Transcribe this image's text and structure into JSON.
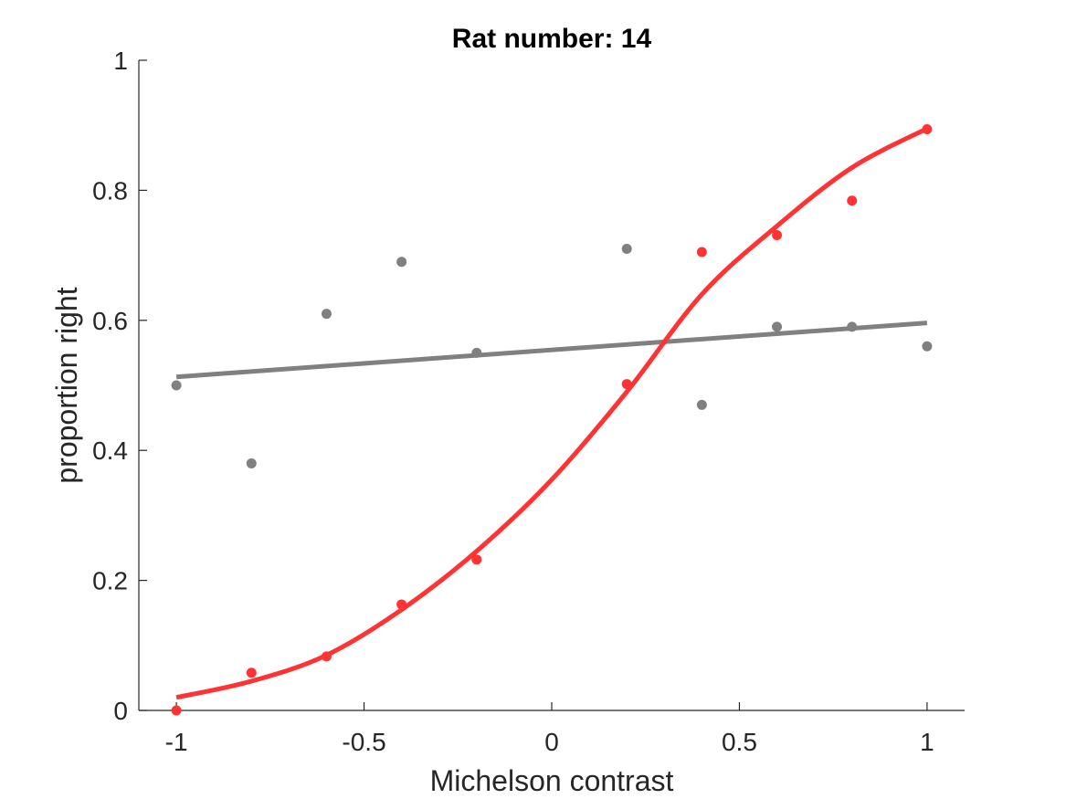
{
  "chart_data": {
    "type": "scatter",
    "title": "Rat number: 14",
    "xlabel": "Michelson contrast",
    "ylabel": "proportion right",
    "xlim": [
      -1.1,
      1.1
    ],
    "ylim": [
      0,
      1
    ],
    "xticks": [
      -1,
      -0.5,
      0,
      0.5,
      1
    ],
    "xtick_labels": [
      "-1",
      "-0.5",
      "0",
      "0.5",
      "1"
    ],
    "yticks": [
      0,
      0.2,
      0.4,
      0.6,
      0.8,
      1
    ],
    "ytick_labels": [
      "0",
      "0.2",
      "0.4",
      "0.6",
      "0.8",
      "1"
    ],
    "grid": false,
    "legend": "none",
    "series": [
      {
        "color": "#808080",
        "points": [
          {
            "x": -1.0,
            "y": 0.5
          },
          {
            "x": -0.8,
            "y": 0.38
          },
          {
            "x": -0.6,
            "y": 0.61
          },
          {
            "x": -0.4,
            "y": 0.69
          },
          {
            "x": -0.2,
            "y": 0.55
          },
          {
            "x": 0.2,
            "y": 0.71
          },
          {
            "x": 0.4,
            "y": 0.47
          },
          {
            "x": 0.6,
            "y": 0.59
          },
          {
            "x": 0.8,
            "y": 0.59
          },
          {
            "x": 1.0,
            "y": 0.56
          }
        ],
        "fit": {
          "x": [
            -1.0,
            1.0
          ],
          "y": [
            0.513,
            0.596
          ]
        }
      },
      {
        "color": "#ff3333",
        "points": [
          {
            "x": -1.0,
            "y": 0.0
          },
          {
            "x": -0.8,
            "y": 0.058
          },
          {
            "x": -0.6,
            "y": 0.083
          },
          {
            "x": -0.4,
            "y": 0.163
          },
          {
            "x": -0.2,
            "y": 0.232
          },
          {
            "x": 0.2,
            "y": 0.502
          },
          {
            "x": 0.4,
            "y": 0.705
          },
          {
            "x": 0.6,
            "y": 0.731
          },
          {
            "x": 0.8,
            "y": 0.784
          },
          {
            "x": 1.0,
            "y": 0.894
          }
        ],
        "fit": {
          "x": [
            -1.0,
            -0.8,
            -0.6,
            -0.4,
            -0.2,
            0.0,
            0.2,
            0.4,
            0.6,
            0.8,
            1.0
          ],
          "y": [
            0.02,
            0.045,
            0.085,
            0.155,
            0.245,
            0.355,
            0.49,
            0.64,
            0.745,
            0.835,
            0.895
          ]
        }
      }
    ]
  }
}
